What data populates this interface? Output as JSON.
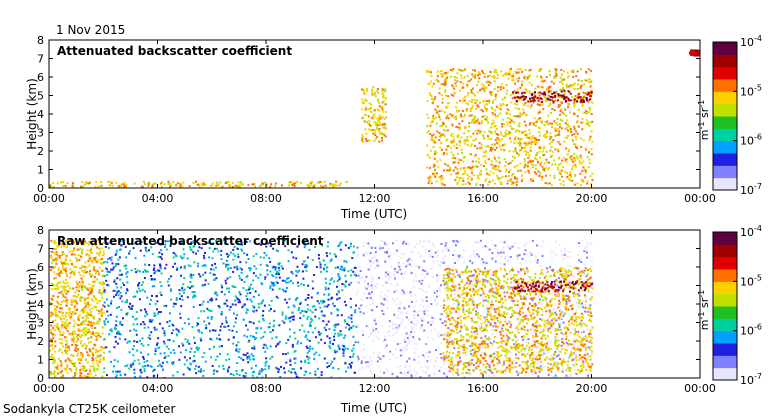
{
  "date": "1 Nov 2015",
  "instrument": "Sodankyla CT25K ceilometer",
  "colorbar": {
    "unit_label_parts": [
      "m",
      "-1",
      "sr",
      "-1"
    ],
    "tick_labels": [
      {
        "base": "10",
        "exp": "-4",
        "value": 0.0001
      },
      {
        "base": "10",
        "exp": "-5",
        "value": 1e-05
      },
      {
        "base": "10",
        "exp": "-6",
        "value": 1e-06
      },
      {
        "base": "10",
        "exp": "-7",
        "value": 1e-07
      }
    ],
    "scale": "log",
    "colors": [
      "#e6e6ff",
      "#8080ff",
      "#2020e0",
      "#00a0ff",
      "#00d0a0",
      "#20c020",
      "#c0e000",
      "#ffd000",
      "#ff7000",
      "#e00000",
      "#a00000",
      "#600040"
    ]
  },
  "chart_data": [
    {
      "type": "heatmap",
      "title": "Attenuated backscatter coefficient",
      "xlabel": "Time (UTC)",
      "ylabel": "Height (km)",
      "xlim": [
        "00:00",
        "00:00"
      ],
      "ylim": [
        0,
        8
      ],
      "x_tick_labels": [
        "00:00",
        "04:00",
        "08:00",
        "12:00",
        "16:00",
        "20:00",
        "00:00"
      ],
      "y_tick_labels": [
        "0",
        "1",
        "2",
        "3",
        "4",
        "5",
        "6",
        "7",
        "8"
      ],
      "features": [
        {
          "name": "boundary layer",
          "time_hours": [
            0,
            11
          ],
          "height_km": [
            0.1,
            0.4
          ],
          "level": "1e-5"
        },
        {
          "name": "cloud",
          "time_hours": [
            11.5,
            12.4
          ],
          "height_km": [
            2.5,
            5.5
          ],
          "level": "1e-5"
        },
        {
          "name": "cloud",
          "time_hours": [
            13.9,
            20
          ],
          "height_km": [
            0.2,
            6.5
          ],
          "level": "1e-5"
        },
        {
          "name": "cloud layer",
          "time_hours": [
            17,
            20
          ],
          "height_km": [
            4.7,
            5.3
          ],
          "level": "1e-4"
        },
        {
          "name": "cloud top",
          "time_hours": [
            23.6,
            24
          ],
          "height_km": [
            7.2,
            7.5
          ],
          "level": "1e-4"
        }
      ]
    },
    {
      "type": "heatmap",
      "title": "Raw attenuated backscatter coefficient",
      "xlabel": "Time (UTC)",
      "ylabel": "Height (km)",
      "xlim": [
        "00:00",
        "00:00"
      ],
      "ylim": [
        0,
        8
      ],
      "x_tick_labels": [
        "00:00",
        "04:00",
        "08:00",
        "12:00",
        "16:00",
        "20:00",
        "00:00"
      ],
      "y_tick_labels": [
        "0",
        "1",
        "2",
        "3",
        "4",
        "5",
        "6",
        "7",
        "8"
      ],
      "features": [
        {
          "name": "noise",
          "time_hours": [
            0,
            2
          ],
          "height_km": [
            0,
            7.5
          ],
          "level": "1e-5"
        },
        {
          "name": "noise",
          "time_hours": [
            2,
            11.3
          ],
          "height_km": [
            0,
            7.5
          ],
          "level": "1e-6"
        },
        {
          "name": "noise",
          "time_hours": [
            11.3,
            20
          ],
          "height_km": [
            0,
            7.5
          ],
          "level": "1e-7"
        },
        {
          "name": "cloud",
          "time_hours": [
            14.5,
            20
          ],
          "height_km": [
            0.3,
            6.0
          ],
          "level": "1e-5"
        },
        {
          "name": "cloud layer",
          "time_hours": [
            17,
            20
          ],
          "height_km": [
            4.7,
            5.3
          ],
          "level": "1e-4"
        }
      ]
    }
  ]
}
